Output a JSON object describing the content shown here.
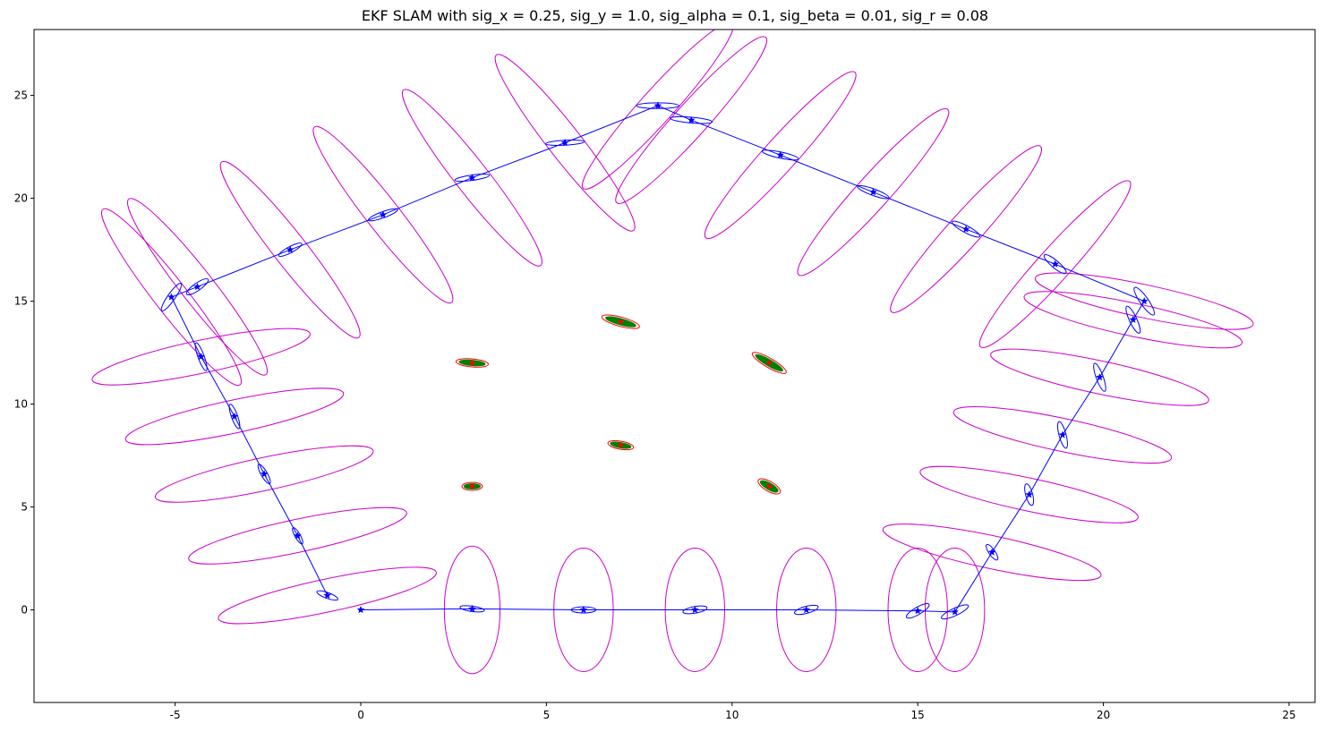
{
  "chart_data": {
    "type": "scatter",
    "title": "EKF SLAM with sig_x = 0.25, sig_y = 1.0, sig_alpha = 0.1, sig_beta = 0.01, sig_r = 0.08",
    "xlabel": "",
    "ylabel": "",
    "xlim": [
      -8.8,
      25.7
    ],
    "ylim": [
      -4.5,
      28.2
    ],
    "x_ticks": [
      -5,
      0,
      5,
      10,
      15,
      20,
      25
    ],
    "y_ticks": [
      0,
      5,
      10,
      15,
      20,
      25
    ],
    "grid": false,
    "colors": {
      "trajectory": "#0000ff",
      "landmark_uncertainty": "#cc00cc",
      "landmark_estimate_ellipse": "#ff0000",
      "landmark_fill": "#008000",
      "landmark_marker": "#ff0000"
    },
    "trajectory": [
      {
        "x": 0.0,
        "y": 0.0
      },
      {
        "x": 3.0,
        "y": 0.05
      },
      {
        "x": 6.0,
        "y": 0.0
      },
      {
        "x": 9.0,
        "y": 0.0
      },
      {
        "x": 12.0,
        "y": 0.0
      },
      {
        "x": 15.0,
        "y": -0.05
      },
      {
        "x": 16.0,
        "y": -0.1
      },
      {
        "x": 17.0,
        "y": 2.8
      },
      {
        "x": 18.0,
        "y": 5.6
      },
      {
        "x": 18.9,
        "y": 8.5
      },
      {
        "x": 19.9,
        "y": 11.3
      },
      {
        "x": 20.8,
        "y": 14.1
      },
      {
        "x": 21.1,
        "y": 15.0
      },
      {
        "x": 18.7,
        "y": 16.8
      },
      {
        "x": 16.3,
        "y": 18.5
      },
      {
        "x": 13.8,
        "y": 20.3
      },
      {
        "x": 11.3,
        "y": 22.1
      },
      {
        "x": 8.9,
        "y": 23.8
      },
      {
        "x": 8.0,
        "y": 24.5
      },
      {
        "x": 5.5,
        "y": 22.7
      },
      {
        "x": 3.0,
        "y": 21.0
      },
      {
        "x": 0.6,
        "y": 19.2
      },
      {
        "x": -1.9,
        "y": 17.5
      },
      {
        "x": -4.4,
        "y": 15.7
      },
      {
        "x": -5.1,
        "y": 15.2
      },
      {
        "x": -4.3,
        "y": 12.3
      },
      {
        "x": -3.4,
        "y": 9.4
      },
      {
        "x": -2.6,
        "y": 6.6
      },
      {
        "x": -1.7,
        "y": 3.6
      },
      {
        "x": -0.9,
        "y": 0.7
      }
    ],
    "pose_uncertainty_ellipses": [
      {
        "x": -0.9,
        "y": 0.7,
        "rx": 0.3,
        "ry": 0.14,
        "angle": -20
      },
      {
        "x": -1.7,
        "y": 3.6,
        "rx": 0.25,
        "ry": 0.13,
        "angle": -60
      },
      {
        "x": -2.6,
        "y": 6.6,
        "rx": 0.3,
        "ry": 0.15,
        "angle": -60
      },
      {
        "x": -3.4,
        "y": 9.4,
        "rx": 0.35,
        "ry": 0.15,
        "angle": -70
      },
      {
        "x": -4.3,
        "y": 12.3,
        "rx": 0.4,
        "ry": 0.15,
        "angle": -70
      },
      {
        "x": -5.1,
        "y": 15.2,
        "rx": 0.45,
        "ry": 0.18,
        "angle": 55
      },
      {
        "x": -4.4,
        "y": 15.7,
        "rx": 0.35,
        "ry": 0.18,
        "angle": 35
      },
      {
        "x": -1.9,
        "y": 17.5,
        "rx": 0.35,
        "ry": 0.15,
        "angle": 28
      },
      {
        "x": 0.6,
        "y": 19.2,
        "rx": 0.42,
        "ry": 0.15,
        "angle": 20
      },
      {
        "x": 3.0,
        "y": 21.0,
        "rx": 0.47,
        "ry": 0.13,
        "angle": 8
      },
      {
        "x": 5.5,
        "y": 22.7,
        "rx": 0.52,
        "ry": 0.12,
        "angle": 3
      },
      {
        "x": 8.0,
        "y": 24.5,
        "rx": 0.57,
        "ry": 0.14,
        "angle": 0
      },
      {
        "x": 8.9,
        "y": 23.8,
        "rx": 0.57,
        "ry": 0.14,
        "angle": -5
      },
      {
        "x": 11.3,
        "y": 22.1,
        "rx": 0.5,
        "ry": 0.15,
        "angle": -12
      },
      {
        "x": 13.8,
        "y": 20.3,
        "rx": 0.45,
        "ry": 0.16,
        "angle": -20
      },
      {
        "x": 16.3,
        "y": 18.5,
        "rx": 0.42,
        "ry": 0.17,
        "angle": -28
      },
      {
        "x": 18.7,
        "y": 16.8,
        "rx": 0.38,
        "ry": 0.18,
        "angle": -40
      },
      {
        "x": 21.1,
        "y": 15.0,
        "rx": 0.45,
        "ry": 0.2,
        "angle": -55
      },
      {
        "x": 20.8,
        "y": 14.1,
        "rx": 0.4,
        "ry": 0.18,
        "angle": -65
      },
      {
        "x": 19.9,
        "y": 11.3,
        "rx": 0.4,
        "ry": 0.17,
        "angle": -70
      },
      {
        "x": 18.9,
        "y": 8.5,
        "rx": 0.37,
        "ry": 0.17,
        "angle": -75
      },
      {
        "x": 18.0,
        "y": 5.6,
        "rx": 0.3,
        "ry": 0.17,
        "angle": -75
      },
      {
        "x": 17.0,
        "y": 2.8,
        "rx": 0.25,
        "ry": 0.15,
        "angle": -55
      },
      {
        "x": 16.0,
        "y": -0.1,
        "rx": 0.4,
        "ry": 0.18,
        "angle": 25
      },
      {
        "x": 15.0,
        "y": -0.05,
        "rx": 0.35,
        "ry": 0.18,
        "angle": 30
      },
      {
        "x": 12.0,
        "y": 0.0,
        "rx": 0.33,
        "ry": 0.17,
        "angle": 15
      },
      {
        "x": 9.0,
        "y": 0.0,
        "rx": 0.33,
        "ry": 0.16,
        "angle": 10
      },
      {
        "x": 6.0,
        "y": 0.0,
        "rx": 0.33,
        "ry": 0.15,
        "angle": 0
      },
      {
        "x": 3.0,
        "y": 0.05,
        "rx": 0.33,
        "ry": 0.13,
        "angle": -8
      }
    ],
    "measurement_uncertainty_ellipses": [
      {
        "x": 3.0,
        "y": 0.0,
        "rx": 0.75,
        "ry": 3.1,
        "angle": 0
      },
      {
        "x": 6.0,
        "y": 0.0,
        "rx": 0.8,
        "ry": 3.0,
        "angle": 0
      },
      {
        "x": 9.0,
        "y": 0.0,
        "rx": 0.8,
        "ry": 3.0,
        "angle": 0
      },
      {
        "x": 12.0,
        "y": 0.0,
        "rx": 0.8,
        "ry": 3.0,
        "angle": 0
      },
      {
        "x": 15.0,
        "y": 0.0,
        "rx": 0.8,
        "ry": 3.0,
        "angle": 0
      },
      {
        "x": 16.0,
        "y": 0.0,
        "rx": 0.8,
        "ry": 3.0,
        "angle": 0
      },
      {
        "x": 17.0,
        "y": 2.8,
        "rx": 3.0,
        "ry": 0.8,
        "angle": -12
      },
      {
        "x": 18.0,
        "y": 5.6,
        "rx": 3.0,
        "ry": 0.8,
        "angle": -12
      },
      {
        "x": 18.9,
        "y": 8.5,
        "rx": 3.0,
        "ry": 0.8,
        "angle": -12
      },
      {
        "x": 19.9,
        "y": 11.3,
        "rx": 3.0,
        "ry": 0.8,
        "angle": -12
      },
      {
        "x": 20.8,
        "y": 14.1,
        "rx": 3.0,
        "ry": 0.8,
        "angle": -12
      },
      {
        "x": 21.1,
        "y": 15.0,
        "rx": 3.0,
        "ry": 0.8,
        "angle": -12
      },
      {
        "x": 18.7,
        "y": 16.8,
        "rx": 3.0,
        "ry": 0.8,
        "angle": 48
      },
      {
        "x": 16.3,
        "y": 18.5,
        "rx": 3.0,
        "ry": 0.8,
        "angle": 48
      },
      {
        "x": 13.8,
        "y": 20.3,
        "rx": 3.0,
        "ry": 0.8,
        "angle": 48
      },
      {
        "x": 11.3,
        "y": 22.1,
        "rx": 3.0,
        "ry": 0.8,
        "angle": 48
      },
      {
        "x": 8.9,
        "y": 23.8,
        "rx": 3.0,
        "ry": 0.8,
        "angle": 48
      },
      {
        "x": 8.0,
        "y": 24.5,
        "rx": 3.0,
        "ry": 0.8,
        "angle": 48
      },
      {
        "x": 5.5,
        "y": 22.7,
        "rx": 3.0,
        "ry": 0.8,
        "angle": -52
      },
      {
        "x": 3.0,
        "y": 21.0,
        "rx": 3.0,
        "ry": 0.8,
        "angle": -52
      },
      {
        "x": 0.6,
        "y": 19.2,
        "rx": 3.0,
        "ry": 0.8,
        "angle": -52
      },
      {
        "x": -1.9,
        "y": 17.5,
        "rx": 3.0,
        "ry": 0.8,
        "angle": -52
      },
      {
        "x": -4.4,
        "y": 15.7,
        "rx": 3.0,
        "ry": 0.8,
        "angle": -52
      },
      {
        "x": -5.1,
        "y": 15.2,
        "rx": 3.0,
        "ry": 0.8,
        "angle": -52
      },
      {
        "x": -4.3,
        "y": 12.3,
        "rx": 3.0,
        "ry": 0.8,
        "angle": 12
      },
      {
        "x": -3.4,
        "y": 9.4,
        "rx": 3.0,
        "ry": 0.8,
        "angle": 12
      },
      {
        "x": -2.6,
        "y": 6.6,
        "rx": 3.0,
        "ry": 0.8,
        "angle": 12
      },
      {
        "x": -1.7,
        "y": 3.6,
        "rx": 3.0,
        "ry": 0.8,
        "angle": 12
      },
      {
        "x": -0.9,
        "y": 0.7,
        "rx": 3.0,
        "ry": 0.8,
        "angle": 12
      }
    ],
    "landmarks": [
      {
        "x": 3.0,
        "y": 6.0,
        "rx": 0.22,
        "ry": 0.13,
        "angle": 0
      },
      {
        "x": 7.0,
        "y": 8.0,
        "rx": 0.28,
        "ry": 0.13,
        "angle": -10
      },
      {
        "x": 11.0,
        "y": 6.0,
        "rx": 0.27,
        "ry": 0.16,
        "angle": -30
      },
      {
        "x": 3.0,
        "y": 12.0,
        "rx": 0.35,
        "ry": 0.13,
        "angle": -5
      },
      {
        "x": 7.0,
        "y": 14.0,
        "rx": 0.42,
        "ry": 0.15,
        "angle": -15
      },
      {
        "x": 11.0,
        "y": 12.0,
        "rx": 0.42,
        "ry": 0.15,
        "angle": -30
      }
    ]
  }
}
